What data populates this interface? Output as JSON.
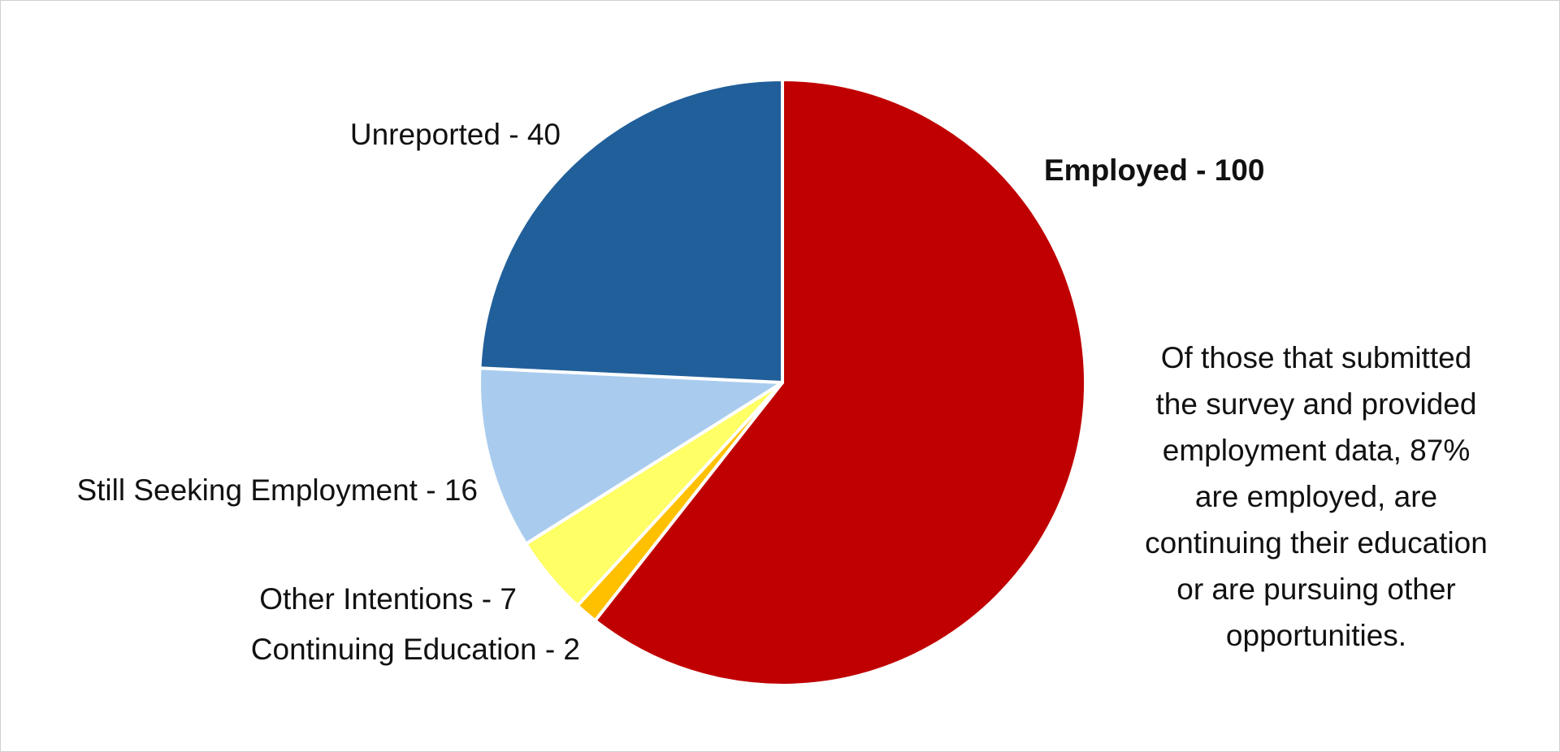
{
  "chart_data": {
    "type": "pie",
    "slices": [
      {
        "label": "Employed - 100",
        "category": "Employed",
        "value": 100,
        "color": "#C00000",
        "bold": true
      },
      {
        "label": "Continuing Education - 2",
        "category": "Continuing Education",
        "value": 2,
        "color": "#FFC000",
        "bold": false
      },
      {
        "label": "Other Intentions - 7",
        "category": "Other Intentions",
        "value": 7,
        "color": "#FFFF66",
        "bold": false
      },
      {
        "label": "Still Seeking Employment - 16",
        "category": "Still Seeking Employment",
        "value": 16,
        "color": "#A9CCEE",
        "bold": false
      },
      {
        "label": "Unreported - 40",
        "category": "Unreported",
        "value": 40,
        "color": "#215F9A",
        "bold": false
      }
    ],
    "start": "12 o'clock",
    "direction": "clockwise",
    "slice_border_color": "#FFFFFF"
  },
  "note": {
    "lines": [
      "Of those that submitted",
      "the survey and provided",
      "employment data, 87%",
      "are employed, are",
      "continuing their education",
      "or are pursuing other",
      "opportunities."
    ]
  }
}
